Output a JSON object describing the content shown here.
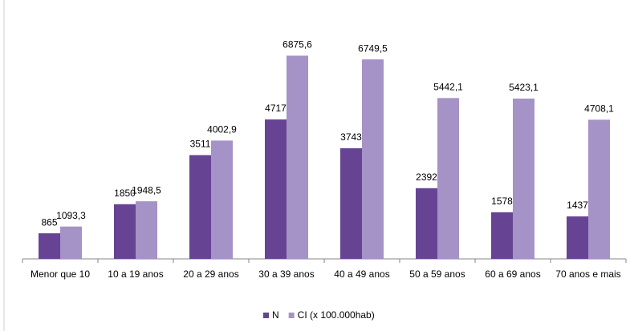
{
  "chart_data": {
    "type": "bar",
    "categories": [
      "Menor que 10",
      "10 a 19 anos",
      "20 a 29 anos",
      "30 a 39 anos",
      "40 a 49 anos",
      "50 a 59 anos",
      "60 a 69 anos",
      "70 anos e mais"
    ],
    "series": [
      {
        "name": "N",
        "color": "#664493",
        "values": [
          865,
          1850,
          3511,
          4717,
          3743,
          2392,
          1578,
          1437
        ]
      },
      {
        "name": "CI (x 100.000hab)",
        "color": "#a592c6",
        "values": [
          1093.3,
          1948.5,
          4002.9,
          6875.6,
          6749.5,
          5442.1,
          5423.1,
          4708.1
        ],
        "value_labels": [
          "1093,3",
          "1948,5",
          "4002,9",
          "6875,6",
          "6749,5",
          "5442,1",
          "5423,1",
          "4708,1"
        ]
      }
    ],
    "ylim": [
      0,
      8000
    ],
    "legend": "bottom"
  }
}
